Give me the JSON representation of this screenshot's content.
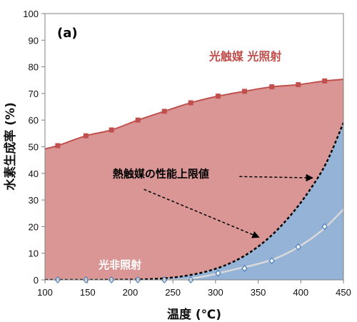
{
  "chart_data": {
    "type": "area",
    "panel_label": "(a)",
    "xlabel": "温度 (℃)",
    "ylabel": "水素生成率 (%)",
    "xlim": [
      100,
      450
    ],
    "ylim": [
      0,
      100
    ],
    "x_ticks": [
      100,
      150,
      200,
      250,
      300,
      350,
      400,
      450
    ],
    "y_ticks": [
      0,
      10,
      20,
      30,
      40,
      50,
      60,
      70,
      80,
      90,
      100
    ],
    "grid": false,
    "series": [
      {
        "name": "光触媒 光照射",
        "color": "#c0504d",
        "fill": "#d99694",
        "marker": "square",
        "x": [
          115,
          148,
          178,
          209,
          240,
          271,
          303,
          334,
          366,
          397,
          428
        ],
        "y": [
          50.4,
          54.1,
          56.3,
          60.0,
          63.3,
          66.5,
          69.0,
          70.8,
          72.5,
          73.3,
          74.7
        ],
        "curve": [
          [
            100,
            49.2
          ],
          [
            115,
            50.4
          ],
          [
            148,
            54.1
          ],
          [
            178,
            56.3
          ],
          [
            209,
            60.0
          ],
          [
            240,
            63.3
          ],
          [
            271,
            66.5
          ],
          [
            303,
            69.0
          ],
          [
            334,
            70.8
          ],
          [
            366,
            72.5
          ],
          [
            397,
            73.3
          ],
          [
            428,
            74.7
          ],
          [
            450,
            75.3
          ]
        ]
      },
      {
        "name": "熱触媒の性能上限値",
        "color": "#000000",
        "fill": "#95b3d7",
        "style": "dashed",
        "curve": [
          [
            100,
            0
          ],
          [
            150,
            0
          ],
          [
            200,
            0.1
          ],
          [
            230,
            0.4
          ],
          [
            250,
            0.9
          ],
          [
            270,
            1.8
          ],
          [
            290,
            3.2
          ],
          [
            310,
            5.3
          ],
          [
            330,
            8.3
          ],
          [
            350,
            12.5
          ],
          [
            370,
            18.0
          ],
          [
            390,
            25.0
          ],
          [
            410,
            33.5
          ],
          [
            430,
            44.0
          ],
          [
            450,
            59.0
          ]
        ]
      },
      {
        "name": "光非照射",
        "color": "#d9d9d9",
        "marker": "diamond",
        "marker_color": "#4f81bd",
        "x": [
          115,
          148,
          178,
          209,
          240,
          271,
          303,
          334,
          366,
          397,
          428
        ],
        "y": [
          0,
          0,
          0,
          0,
          0,
          0,
          2.5,
          4.3,
          7.2,
          12.4,
          20.0
        ],
        "curve": [
          [
            100,
            0
          ],
          [
            250,
            0
          ],
          [
            270,
            0.5
          ],
          [
            290,
            1.5
          ],
          [
            310,
            3.0
          ],
          [
            330,
            4.5
          ],
          [
            350,
            6.0
          ],
          [
            370,
            8.0
          ],
          [
            390,
            11.0
          ],
          [
            410,
            15.0
          ],
          [
            430,
            20.0
          ],
          [
            450,
            26.5
          ]
        ]
      }
    ],
    "annotations": [
      {
        "text": "光触媒 光照射",
        "color": "#c0504d",
        "at": [
          335,
          82.5
        ]
      },
      {
        "text": "熱触媒の性能上限値",
        "color": "#000000",
        "at": [
          236,
          38.5
        ],
        "arrows": [
          [
            [
              328,
              38.8
            ],
            [
              414,
              38.3
            ]
          ],
          [
            [
              216,
              34.0
            ],
            [
              351,
              16.0
            ]
          ]
        ]
      },
      {
        "text": "光非照射",
        "color": "#ffffff",
        "at": [
          188,
          4.3
        ]
      }
    ]
  }
}
